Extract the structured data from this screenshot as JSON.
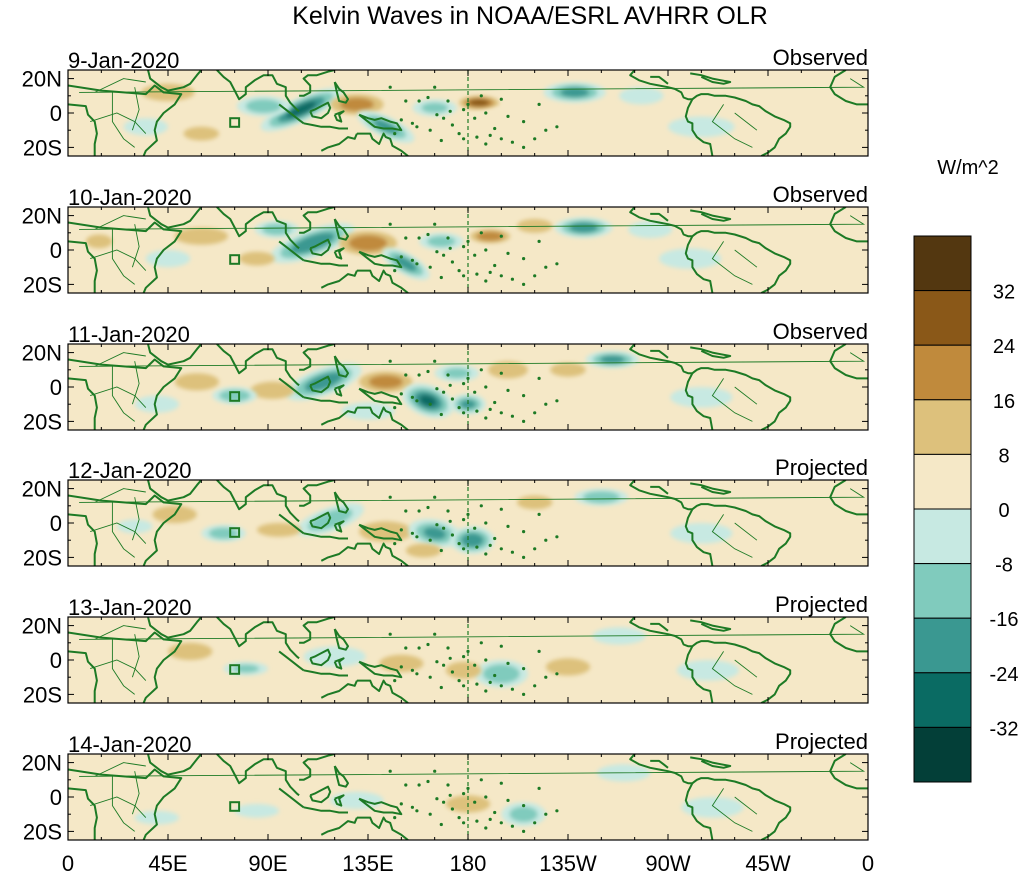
{
  "chart_data": {
    "type": "heatmap",
    "title": "Kelvin Waves in NOAA/ESRL AVHRR OLR",
    "units": "W/m^2",
    "x_ticks": [
      "0",
      "45E",
      "90E",
      "135E",
      "180",
      "135W",
      "90W",
      "45W",
      "0"
    ],
    "y_ticks": [
      "20N",
      "0",
      "20S"
    ],
    "xlim": [
      0,
      360
    ],
    "ylim": [
      -25,
      25
    ],
    "reference_line": {
      "lon": 180,
      "style": "dashed"
    },
    "colorbar": {
      "levels": [
        32,
        24,
        16,
        8,
        0,
        -8,
        -16,
        -24,
        -32
      ],
      "colors": [
        "#533710",
        "#8a5818",
        "#c08a3c",
        "#ddc17c",
        "#f5e8c7",
        "#c7e9e2",
        "#80cbbd",
        "#3a9891",
        "#0a6b63",
        "#033f38"
      ]
    },
    "panels": [
      {
        "date": "9-Jan-2020",
        "status": "Observed",
        "features": [
          {
            "lon": 105,
            "lat": 2,
            "value": -34,
            "rx": 20,
            "ry": 7,
            "rot": -25
          },
          {
            "lon": 88,
            "lat": 4,
            "value": -20,
            "rx": 12,
            "ry": 6,
            "rot": 0
          },
          {
            "lon": 130,
            "lat": 5,
            "value": 18,
            "rx": 12,
            "ry": 6,
            "rot": 0
          },
          {
            "lon": 143,
            "lat": -8,
            "value": -24,
            "rx": 14,
            "ry": 6,
            "rot": 25
          },
          {
            "lon": 165,
            "lat": 3,
            "value": -16,
            "rx": 10,
            "ry": 5,
            "rot": 0
          },
          {
            "lon": 185,
            "lat": 6,
            "value": 28,
            "rx": 9,
            "ry": 4,
            "rot": 0
          },
          {
            "lon": 228,
            "lat": 12,
            "value": -26,
            "rx": 14,
            "ry": 6,
            "rot": 0
          },
          {
            "lon": 258,
            "lat": 10,
            "value": -12,
            "rx": 10,
            "ry": 5,
            "rot": 0
          },
          {
            "lon": 285,
            "lat": -8,
            "value": -10,
            "rx": 15,
            "ry": 6,
            "rot": 0
          },
          {
            "lon": 45,
            "lat": 12,
            "value": 10,
            "rx": 12,
            "ry": 5,
            "rot": 0
          },
          {
            "lon": 35,
            "lat": -8,
            "value": -12,
            "rx": 10,
            "ry": 5,
            "rot": 0
          },
          {
            "lon": 207,
            "lat": -6,
            "value": 6,
            "rx": 24,
            "ry": 8,
            "rot": 0
          },
          {
            "lon": 60,
            "lat": -12,
            "value": 8,
            "rx": 8,
            "ry": 4,
            "rot": 0
          }
        ]
      },
      {
        "date": "10-Jan-2020",
        "status": "Observed",
        "features": [
          {
            "lon": 110,
            "lat": 4,
            "value": -30,
            "rx": 20,
            "ry": 8,
            "rot": -20
          },
          {
            "lon": 94,
            "lat": 12,
            "value": -20,
            "rx": 10,
            "ry": 5,
            "rot": 0
          },
          {
            "lon": 135,
            "lat": 4,
            "value": 20,
            "rx": 13,
            "ry": 7,
            "rot": 0
          },
          {
            "lon": 152,
            "lat": -8,
            "value": -26,
            "rx": 12,
            "ry": 6,
            "rot": 30
          },
          {
            "lon": 168,
            "lat": 5,
            "value": -18,
            "rx": 10,
            "ry": 5,
            "rot": 0
          },
          {
            "lon": 190,
            "lat": 8,
            "value": 22,
            "rx": 9,
            "ry": 4,
            "rot": 0
          },
          {
            "lon": 210,
            "lat": 14,
            "value": 12,
            "rx": 8,
            "ry": 4,
            "rot": 0
          },
          {
            "lon": 232,
            "lat": 13,
            "value": -28,
            "rx": 13,
            "ry": 6,
            "rot": 0
          },
          {
            "lon": 262,
            "lat": 12,
            "value": -14,
            "rx": 10,
            "ry": 5,
            "rot": 0
          },
          {
            "lon": 60,
            "lat": 8,
            "value": 10,
            "rx": 12,
            "ry": 5,
            "rot": 0
          },
          {
            "lon": 45,
            "lat": -5,
            "value": -14,
            "rx": 10,
            "ry": 5,
            "rot": 0
          },
          {
            "lon": 280,
            "lat": -5,
            "value": -8,
            "rx": 14,
            "ry": 6,
            "rot": 0
          },
          {
            "lon": 85,
            "lat": -5,
            "value": 12,
            "rx": 8,
            "ry": 4,
            "rot": 0
          },
          {
            "lon": 14,
            "lat": 5,
            "value": 8,
            "rx": 6,
            "ry": 4,
            "rot": 0
          }
        ]
      },
      {
        "date": "11-Jan-2020",
        "status": "Observed",
        "features": [
          {
            "lon": 115,
            "lat": 3,
            "value": -28,
            "rx": 18,
            "ry": 8,
            "rot": -20
          },
          {
            "lon": 92,
            "lat": -2,
            "value": 14,
            "rx": 10,
            "ry": 5,
            "rot": 0
          },
          {
            "lon": 143,
            "lat": 3,
            "value": 18,
            "rx": 12,
            "ry": 6,
            "rot": 0
          },
          {
            "lon": 162,
            "lat": -8,
            "value": -32,
            "rx": 12,
            "ry": 9,
            "rot": 20
          },
          {
            "lon": 180,
            "lat": -10,
            "value": -24,
            "rx": 8,
            "ry": 6,
            "rot": 0
          },
          {
            "lon": 175,
            "lat": 8,
            "value": -16,
            "rx": 10,
            "ry": 5,
            "rot": 0
          },
          {
            "lon": 198,
            "lat": 10,
            "value": 14,
            "rx": 9,
            "ry": 5,
            "rot": 0
          },
          {
            "lon": 245,
            "lat": 16,
            "value": -26,
            "rx": 12,
            "ry": 5,
            "rot": 0
          },
          {
            "lon": 225,
            "lat": 10,
            "value": 10,
            "rx": 8,
            "ry": 4,
            "rot": 0
          },
          {
            "lon": 75,
            "lat": -5,
            "value": -22,
            "rx": 10,
            "ry": 5,
            "rot": 0
          },
          {
            "lon": 58,
            "lat": 3,
            "value": 10,
            "rx": 10,
            "ry": 5,
            "rot": 0
          },
          {
            "lon": 40,
            "lat": -10,
            "value": -10,
            "rx": 10,
            "ry": 5,
            "rot": 0
          },
          {
            "lon": 285,
            "lat": -6,
            "value": -8,
            "rx": 14,
            "ry": 6,
            "rot": 0
          },
          {
            "lon": 135,
            "lat": -14,
            "value": -12,
            "rx": 12,
            "ry": 5,
            "rot": 0
          }
        ]
      },
      {
        "date": "12-Jan-2020",
        "status": "Projected",
        "features": [
          {
            "lon": 118,
            "lat": 2,
            "value": -20,
            "rx": 16,
            "ry": 7,
            "rot": -20
          },
          {
            "lon": 143,
            "lat": -5,
            "value": 12,
            "rx": 12,
            "ry": 6,
            "rot": 0
          },
          {
            "lon": 165,
            "lat": -6,
            "value": -24,
            "rx": 12,
            "ry": 8,
            "rot": 10
          },
          {
            "lon": 182,
            "lat": -10,
            "value": -28,
            "rx": 10,
            "ry": 8,
            "rot": 0
          },
          {
            "lon": 160,
            "lat": -16,
            "value": 14,
            "rx": 8,
            "ry": 4,
            "rot": 0
          },
          {
            "lon": 240,
            "lat": 15,
            "value": -22,
            "rx": 12,
            "ry": 5,
            "rot": 0
          },
          {
            "lon": 210,
            "lat": 12,
            "value": 12,
            "rx": 8,
            "ry": 4,
            "rot": 0
          },
          {
            "lon": 70,
            "lat": -6,
            "value": -20,
            "rx": 10,
            "ry": 5,
            "rot": 0
          },
          {
            "lon": 95,
            "lat": -4,
            "value": 10,
            "rx": 10,
            "ry": 4,
            "rot": 0
          },
          {
            "lon": 48,
            "lat": 5,
            "value": 8,
            "rx": 10,
            "ry": 5,
            "rot": 0
          },
          {
            "lon": 285,
            "lat": -6,
            "value": -8,
            "rx": 14,
            "ry": 6,
            "rot": 0
          },
          {
            "lon": 30,
            "lat": -2,
            "value": -8,
            "rx": 8,
            "ry": 4,
            "rot": 0
          }
        ]
      },
      {
        "date": "13-Jan-2020",
        "status": "Projected",
        "features": [
          {
            "lon": 195,
            "lat": -8,
            "value": -22,
            "rx": 12,
            "ry": 8,
            "rot": 0
          },
          {
            "lon": 178,
            "lat": -6,
            "value": 14,
            "rx": 8,
            "ry": 5,
            "rot": 0
          },
          {
            "lon": 120,
            "lat": 2,
            "value": -12,
            "rx": 14,
            "ry": 6,
            "rot": 0
          },
          {
            "lon": 150,
            "lat": -2,
            "value": 10,
            "rx": 10,
            "ry": 5,
            "rot": 0
          },
          {
            "lon": 80,
            "lat": -5,
            "value": -16,
            "rx": 10,
            "ry": 4,
            "rot": 0
          },
          {
            "lon": 55,
            "lat": 5,
            "value": 8,
            "rx": 10,
            "ry": 5,
            "rot": 0
          },
          {
            "lon": 248,
            "lat": 14,
            "value": -10,
            "rx": 12,
            "ry": 5,
            "rot": 0
          },
          {
            "lon": 288,
            "lat": -6,
            "value": -8,
            "rx": 14,
            "ry": 6,
            "rot": 0
          },
          {
            "lon": 225,
            "lat": -4,
            "value": 8,
            "rx": 10,
            "ry": 5,
            "rot": 0
          }
        ]
      },
      {
        "date": "14-Jan-2020",
        "status": "Projected",
        "features": [
          {
            "lon": 205,
            "lat": -10,
            "value": -18,
            "rx": 10,
            "ry": 7,
            "rot": 0
          },
          {
            "lon": 180,
            "lat": -4,
            "value": 8,
            "rx": 10,
            "ry": 5,
            "rot": 0
          },
          {
            "lon": 130,
            "lat": -2,
            "value": -10,
            "rx": 12,
            "ry": 5,
            "rot": 0
          },
          {
            "lon": 160,
            "lat": -12,
            "value": 6,
            "rx": 8,
            "ry": 4,
            "rot": 0
          },
          {
            "lon": 85,
            "lat": -8,
            "value": -12,
            "rx": 10,
            "ry": 4,
            "rot": 0
          },
          {
            "lon": 60,
            "lat": 4,
            "value": 6,
            "rx": 10,
            "ry": 5,
            "rot": 0
          },
          {
            "lon": 250,
            "lat": 14,
            "value": -8,
            "rx": 12,
            "ry": 5,
            "rot": 0
          },
          {
            "lon": 40,
            "lat": -12,
            "value": -8,
            "rx": 10,
            "ry": 4,
            "rot": 0
          },
          {
            "lon": 290,
            "lat": -6,
            "value": -8,
            "rx": 14,
            "ry": 6,
            "rot": 0
          }
        ]
      }
    ]
  }
}
